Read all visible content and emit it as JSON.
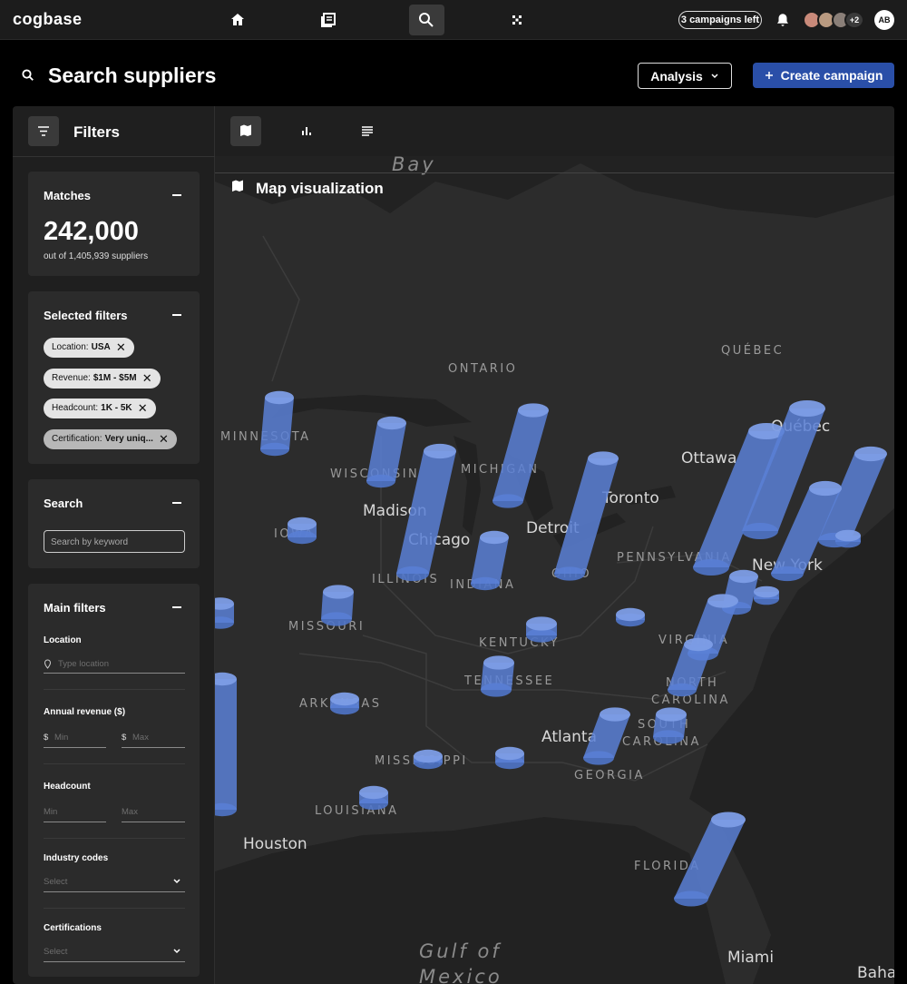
{
  "topbar": {
    "brand": "cogbase",
    "campaigns": "3 campaigns left",
    "avatars_more": "+2",
    "user_initials": "AB"
  },
  "header": {
    "title": "Search suppliers",
    "analysis_button": "Analysis",
    "create_button": "Create campaign"
  },
  "sidebar": {
    "title": "Filters",
    "matches": {
      "title": "Matches",
      "count": "242,000",
      "subtitle": "out of 1,405,939 suppliers"
    },
    "selected_filters": {
      "title": "Selected filters",
      "chips": [
        {
          "label": "Location:",
          "value": "USA"
        },
        {
          "label": "Revenue:",
          "value": "$1M - $5M"
        },
        {
          "label": "Headcount:",
          "value": "1K - 5K"
        },
        {
          "label": "Certification:",
          "value": "Very uniq..."
        }
      ]
    },
    "search": {
      "title": "Search",
      "placeholder": "Search by keyword"
    },
    "main_filters": {
      "title": "Main filters",
      "location": {
        "label": "Location",
        "placeholder": "Type location"
      },
      "revenue": {
        "label": "Annual revenue ($)",
        "currency": "$",
        "min": "Min",
        "max": "Max"
      },
      "headcount": {
        "label": "Headcount",
        "min": "Min",
        "max": "Max"
      },
      "industry": {
        "label": "Industry codes",
        "placeholder": "Select"
      },
      "certifications": {
        "label": "Certifications",
        "placeholder": "Select"
      }
    }
  },
  "map": {
    "title": "Map visualization",
    "labels": [
      "Bay",
      "ONTARIO",
      "QUÉBEC",
      "MINNESOTA",
      "WISCONSIN",
      "MICHIGAN",
      "Ottawa",
      "Québec",
      "Toronto",
      "Madison",
      "Chicago",
      "Detroit",
      "IOWA",
      "ILLINOIS",
      "INDIANA",
      "OHIO",
      "PENNSYLVANIA",
      "New York",
      "MISSOURI",
      "KENTUCKY",
      "VIRGINIA",
      "TENNESSEE",
      "ARKANSAS",
      "NORTH",
      "CAROLINA",
      "SOUTH",
      "CAROLINA",
      "Atlanta",
      "MISSISSIPPI",
      "GEORGIA",
      "LOUISIANA",
      "Houston",
      "FLORIDA",
      "Gulf of",
      "Mexico",
      "Miami",
      "Bahamas"
    ]
  }
}
